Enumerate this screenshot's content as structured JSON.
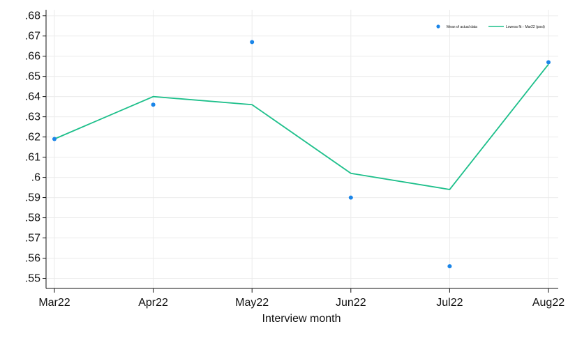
{
  "chart_data": {
    "type": "line",
    "title": "",
    "xlabel": "Interview month",
    "ylabel": "",
    "categories": [
      "Mar22",
      "Apr22",
      "May22",
      "Jun22",
      "Jul22",
      "Aug22"
    ],
    "ylim": [
      0.545,
      0.683
    ],
    "yticks": [
      0.55,
      0.56,
      0.57,
      0.58,
      0.59,
      0.6,
      0.61,
      0.62,
      0.63,
      0.64,
      0.65,
      0.66,
      0.67,
      0.68
    ],
    "ytick_labels": [
      ".55",
      ".56",
      ".57",
      ".58",
      ".59",
      ".6",
      ".61",
      ".62",
      ".63",
      ".64",
      ".65",
      ".66",
      ".67",
      ".68"
    ],
    "grid": true,
    "legend_position": "top-right",
    "series": [
      {
        "name": "Mean of actual data",
        "kind": "scatter",
        "color": "#1a85e8",
        "values": [
          0.619,
          0.636,
          0.667,
          0.59,
          0.556,
          0.657
        ]
      },
      {
        "name": "Lowess fit ↑ Mar22 (post)",
        "kind": "line",
        "color": "#1cbf8a",
        "values": [
          0.619,
          0.64,
          0.636,
          0.602,
          0.594,
          0.656
        ]
      }
    ]
  }
}
